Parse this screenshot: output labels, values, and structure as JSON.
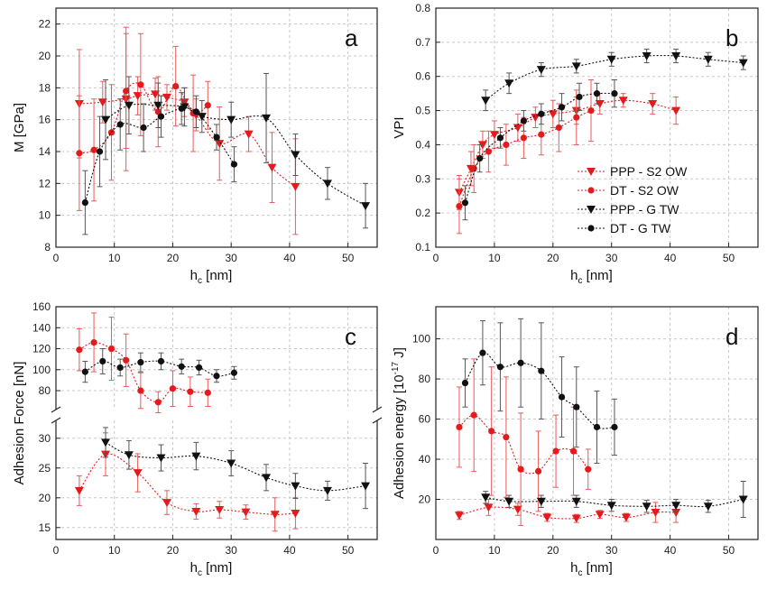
{
  "colors": {
    "red": "#e41a1c",
    "black": "#111111",
    "ered": "#e85a5a",
    "eblack": "#555555"
  },
  "legend": [
    {
      "label": "PPP - S2 OW",
      "color": "#e41a1c",
      "marker": "triangle-down"
    },
    {
      "label": "DT - S2 OW",
      "color": "#e41a1c",
      "marker": "circle"
    },
    {
      "label": "PPP - G TW",
      "color": "#111111",
      "marker": "triangle-down"
    },
    {
      "label": "DT - G TW",
      "color": "#111111",
      "marker": "circle"
    }
  ],
  "chart_data": [
    {
      "type": "scatter",
      "panel": "a",
      "xlabel": "h",
      "xlabel_sub": "c",
      "xlabel_unit": " [nm]",
      "ylabel": "M [GPa]",
      "xlim": [
        0,
        55
      ],
      "ylim": [
        8,
        23
      ],
      "xticks": [
        0,
        10,
        20,
        30,
        40,
        50
      ],
      "yticks": [
        8,
        10,
        12,
        14,
        16,
        18,
        20,
        22
      ],
      "series": [
        {
          "name": "PPP - S2 OW",
          "marker": "tri",
          "color": "red",
          "x": [
            4,
            8,
            12,
            14,
            17,
            19,
            22,
            24,
            28,
            33,
            37,
            41
          ],
          "y": [
            17,
            17.1,
            17.3,
            17.5,
            17.6,
            17.4,
            17.1,
            16.3,
            14.5,
            15.1,
            13,
            11.8
          ],
          "err": [
            3.4,
            1.3,
            4.5,
            1.2,
            1.0,
            0.8,
            0.9,
            1.0,
            2.3,
            1.1,
            2.2,
            3.0
          ]
        },
        {
          "name": "DT - S2 OW",
          "marker": "circ",
          "color": "red",
          "x": [
            4,
            6.5,
            9.5,
            12,
            14.5,
            17.5,
            20.5,
            23.5,
            26
          ],
          "y": [
            13.9,
            14.1,
            15.2,
            17.8,
            18.2,
            16.5,
            18.1,
            16.4,
            16.9
          ],
          "err": [
            3.6,
            3.2,
            3.0,
            3.6,
            3.2,
            2.2,
            2.5,
            2.4,
            1.5
          ]
        },
        {
          "name": "PPP - G TW",
          "marker": "tri",
          "color": "black",
          "x": [
            8.5,
            12.5,
            17.5,
            22,
            25,
            30,
            36,
            41,
            46.5,
            53
          ],
          "y": [
            16,
            16.9,
            16.9,
            16.8,
            16.2,
            16,
            16.1,
            13.8,
            12,
            10.6
          ],
          "err": [
            2.5,
            1.8,
            1.4,
            1.2,
            1.0,
            1.1,
            2.8,
            1.3,
            1.0,
            1.4
          ]
        },
        {
          "name": "DT - G TW",
          "marker": "circ",
          "color": "black",
          "x": [
            5,
            7.5,
            11,
            15,
            18,
            21.5,
            24,
            27.5,
            30.5
          ],
          "y": [
            10.8,
            14,
            15.7,
            15.5,
            16.2,
            16.7,
            16.5,
            14.9,
            13.2
          ],
          "err": [
            2.0,
            2.2,
            1.6,
            1.5,
            1.3,
            1.0,
            1.0,
            0.8,
            1.1
          ]
        }
      ]
    },
    {
      "type": "scatter",
      "panel": "b",
      "xlabel": "h",
      "xlabel_sub": "c",
      "xlabel_unit": " [nm]",
      "ylabel": "VPI",
      "xlim": [
        0,
        55
      ],
      "ylim": [
        0.1,
        0.8
      ],
      "xticks": [
        0,
        10,
        20,
        30,
        40,
        50
      ],
      "yticks": [
        0.1,
        0.2,
        0.3,
        0.4,
        0.5,
        0.6,
        0.7,
        0.8
      ],
      "yticklabels": [
        "0.1",
        "0.2",
        "0.3",
        "0.4",
        "0.5",
        "0.6",
        "0.7",
        "0.8"
      ],
      "series": [
        {
          "name": "PPP - S2 OW",
          "marker": "tri",
          "color": "red",
          "x": [
            4,
            6,
            8,
            10,
            14,
            17,
            20,
            24,
            28,
            32,
            37,
            41
          ],
          "y": [
            0.26,
            0.33,
            0.4,
            0.43,
            0.45,
            0.48,
            0.49,
            0.5,
            0.52,
            0.53,
            0.52,
            0.5
          ],
          "err": [
            0.05,
            0.05,
            0.04,
            0.04,
            0.04,
            0.03,
            0.04,
            0.04,
            0.03,
            0.02,
            0.03,
            0.04
          ]
        },
        {
          "name": "DT - S2 OW",
          "marker": "circ",
          "color": "red",
          "x": [
            4,
            6.5,
            9,
            12,
            15,
            18,
            21,
            24,
            26.5
          ],
          "y": [
            0.22,
            0.33,
            0.38,
            0.4,
            0.42,
            0.43,
            0.45,
            0.48,
            0.5
          ],
          "err": [
            0.08,
            0.07,
            0.06,
            0.06,
            0.06,
            0.06,
            0.07,
            0.08,
            0.09
          ]
        },
        {
          "name": "PPP - G TW",
          "marker": "tri",
          "color": "black",
          "x": [
            8.5,
            12.5,
            18,
            24,
            30,
            36,
            41,
            46.5,
            52.5
          ],
          "y": [
            0.53,
            0.58,
            0.62,
            0.63,
            0.65,
            0.66,
            0.66,
            0.65,
            0.64
          ],
          "err": [
            0.03,
            0.03,
            0.02,
            0.02,
            0.02,
            0.02,
            0.02,
            0.02,
            0.02
          ]
        },
        {
          "name": "DT - G TW",
          "marker": "circ",
          "color": "black",
          "x": [
            5,
            7.5,
            11,
            15,
            18,
            21.5,
            24.5,
            27.5,
            30.5
          ],
          "y": [
            0.23,
            0.36,
            0.42,
            0.47,
            0.49,
            0.51,
            0.54,
            0.55,
            0.55
          ],
          "err": [
            0.05,
            0.04,
            0.03,
            0.03,
            0.03,
            0.04,
            0.04,
            0.03,
            0.04
          ]
        }
      ]
    },
    {
      "type": "scatter",
      "panel": "c",
      "broken_axis": true,
      "xlabel": "h",
      "xlabel_sub": "c",
      "xlabel_unit": " [nm]",
      "ylabel": "Adhesion Force [nN]",
      "xlim": [
        0,
        55
      ],
      "ylim_upper": [
        62,
        160
      ],
      "ylim_lower": [
        13,
        33
      ],
      "xticks": [
        0,
        10,
        20,
        30,
        40,
        50
      ],
      "yticks_upper": [
        80,
        100,
        120,
        140,
        160
      ],
      "yticks_lower": [
        15,
        20,
        25,
        30
      ],
      "series": [
        {
          "name": "PPP - S2 OW",
          "marker": "tri",
          "color": "red",
          "x": [
            4,
            8.5,
            14,
            19,
            24,
            28,
            32.5,
            37.5,
            41
          ],
          "y": [
            21.2,
            27.3,
            24.2,
            19.2,
            17.7,
            18,
            17.6,
            17.2,
            17.4
          ],
          "err": [
            2.5,
            3.6,
            3.2,
            2.0,
            1.3,
            1.4,
            1.2,
            2.8,
            2.6
          ]
        },
        {
          "name": "DT - S2 OW",
          "marker": "circ",
          "color": "red",
          "x": [
            4,
            6.5,
            9.5,
            12,
            14.5,
            17.5,
            20,
            23,
            26
          ],
          "y": [
            119,
            126,
            120,
            109,
            80,
            69,
            82,
            79,
            78
          ],
          "err": [
            20,
            28,
            30,
            25,
            17,
            10,
            17,
            14,
            13
          ]
        },
        {
          "name": "PPP - G TW",
          "marker": "tri",
          "color": "black",
          "x": [
            8.5,
            12.5,
            18,
            24,
            30,
            36,
            41,
            46.5,
            53
          ],
          "y": [
            29.3,
            27.2,
            26.7,
            27,
            25.8,
            23.4,
            22,
            21.2,
            22
          ],
          "err": [
            2.5,
            2.4,
            2.2,
            2.3,
            2.1,
            2.2,
            2.1,
            1.6,
            3.8
          ]
        },
        {
          "name": "DT - G TW",
          "marker": "circ",
          "color": "black",
          "x": [
            5,
            8,
            11,
            14.5,
            18,
            21.5,
            24.5,
            27.5,
            30.5
          ],
          "y": [
            98,
            108,
            102,
            107,
            108,
            103,
            102,
            94,
            97
          ],
          "err": [
            10,
            12,
            8,
            9,
            8,
            7,
            7,
            6,
            6
          ]
        }
      ]
    },
    {
      "type": "scatter",
      "panel": "d",
      "xlabel": "h",
      "xlabel_sub": "c",
      "xlabel_unit": " [nm]",
      "ylabel": "Adhesion energy [10",
      "ylabel_sup": "-17",
      "ylabel_unit": " J]",
      "xlim": [
        0,
        55
      ],
      "ylim": [
        0,
        116
      ],
      "xticks": [
        0,
        10,
        20,
        30,
        40,
        50
      ],
      "yticks": [
        20,
        40,
        60,
        80,
        100
      ],
      "series": [
        {
          "name": "PPP - S2 OW",
          "marker": "tri",
          "color": "red",
          "x": [
            4,
            9,
            14,
            19,
            24,
            28,
            32.5,
            37.5,
            41
          ],
          "y": [
            12,
            16,
            15,
            11,
            10.5,
            12.5,
            11,
            13.5,
            13.5
          ],
          "err": [
            2,
            4,
            3,
            2,
            2,
            2,
            2,
            5,
            5
          ]
        },
        {
          "name": "DT - S2 OW",
          "marker": "circ",
          "color": "red",
          "x": [
            4,
            6.5,
            9.5,
            12,
            14.5,
            17.5,
            20.5,
            23.5,
            26
          ],
          "y": [
            56,
            62,
            54,
            51,
            35,
            34,
            44,
            44,
            35
          ],
          "err": [
            20,
            28,
            32,
            30,
            28,
            20,
            18,
            22,
            10
          ]
        },
        {
          "name": "PPP - G TW",
          "marker": "tri",
          "color": "black",
          "x": [
            8.5,
            12.5,
            18,
            24,
            30,
            36,
            41,
            46.5,
            52.5
          ],
          "y": [
            21,
            19,
            19,
            19,
            17,
            16.5,
            17,
            16.5,
            20
          ],
          "err": [
            3,
            3,
            3,
            3,
            3,
            3,
            3,
            3,
            9
          ]
        },
        {
          "name": "DT - G TW",
          "marker": "circ",
          "color": "black",
          "x": [
            5,
            8,
            11,
            14.5,
            18,
            21.5,
            24,
            27.5,
            30.5
          ],
          "y": [
            78,
            93,
            86,
            88,
            84,
            71,
            66,
            56,
            56
          ],
          "err": [
            12,
            16,
            22,
            22,
            24,
            20,
            20,
            18,
            14
          ]
        }
      ]
    }
  ]
}
